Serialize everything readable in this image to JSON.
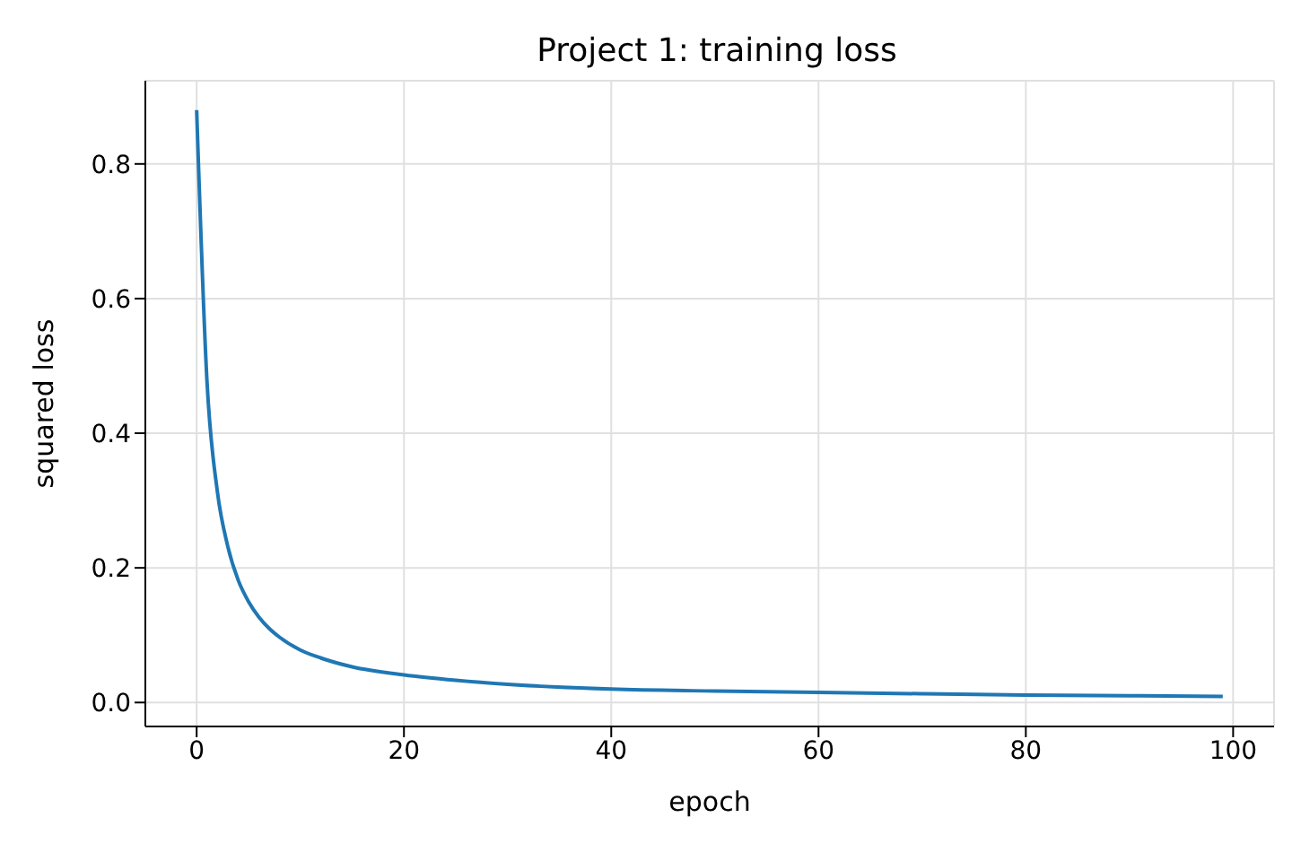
{
  "chart_data": {
    "type": "line",
    "title": "Project 1: training loss",
    "xlabel": "epoch",
    "ylabel": "squared loss",
    "x": [
      0,
      1,
      2,
      3,
      4,
      5,
      6,
      7,
      8,
      10,
      12,
      15,
      20,
      25,
      30,
      40,
      50,
      60,
      70,
      80,
      90,
      99
    ],
    "series": [
      {
        "color": "#1f77b4",
        "values": [
          0.88,
          0.476,
          0.313,
          0.232,
          0.182,
          0.15,
          0.127,
          0.11,
          0.097,
          0.078,
          0.066,
          0.053,
          0.041,
          0.033,
          0.027,
          0.02,
          0.017,
          0.015,
          0.013,
          0.011,
          0.01,
          0.009
        ]
      }
    ],
    "xlim": [
      -4.95,
      103.95
    ],
    "xticks": [
      0,
      20,
      40,
      60,
      80,
      100
    ],
    "ylim": [
      -0.0356,
      0.9236
    ],
    "yticks": [
      {
        "value": 0,
        "label": "0.0"
      },
      {
        "value": 0.2,
        "label": "0.2"
      },
      {
        "value": 0.4,
        "label": "0.4"
      },
      {
        "value": 0.6,
        "label": "0.6"
      },
      {
        "value": 0.8,
        "label": "0.8"
      }
    ],
    "grid": true,
    "marker": "none",
    "line_style": "solid"
  }
}
